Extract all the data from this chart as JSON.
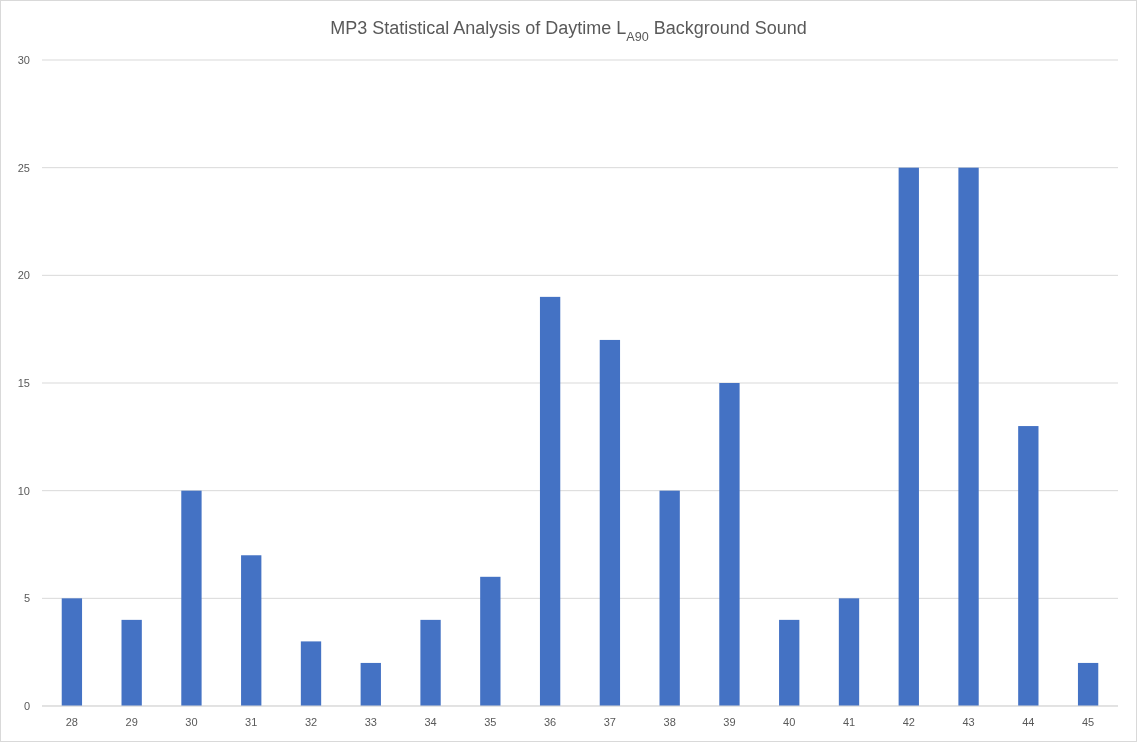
{
  "chart_data": {
    "type": "bar",
    "title": "MP3 Statistical Analysis of Daytime L$_{A90}$ Background Sound",
    "categories": [
      "28",
      "29",
      "30",
      "31",
      "32",
      "33",
      "34",
      "35",
      "36",
      "37",
      "38",
      "39",
      "40",
      "41",
      "42",
      "43",
      "44",
      "45"
    ],
    "values": [
      5,
      4,
      10,
      7,
      3,
      2,
      4,
      6,
      19,
      17,
      10,
      15,
      4,
      5,
      25,
      25,
      13,
      2
    ],
    "color": "#4472c4",
    "ylim": [
      0,
      30
    ],
    "yticks": [
      0,
      5,
      10,
      15,
      20,
      25,
      30
    ],
    "grid": "y"
  }
}
